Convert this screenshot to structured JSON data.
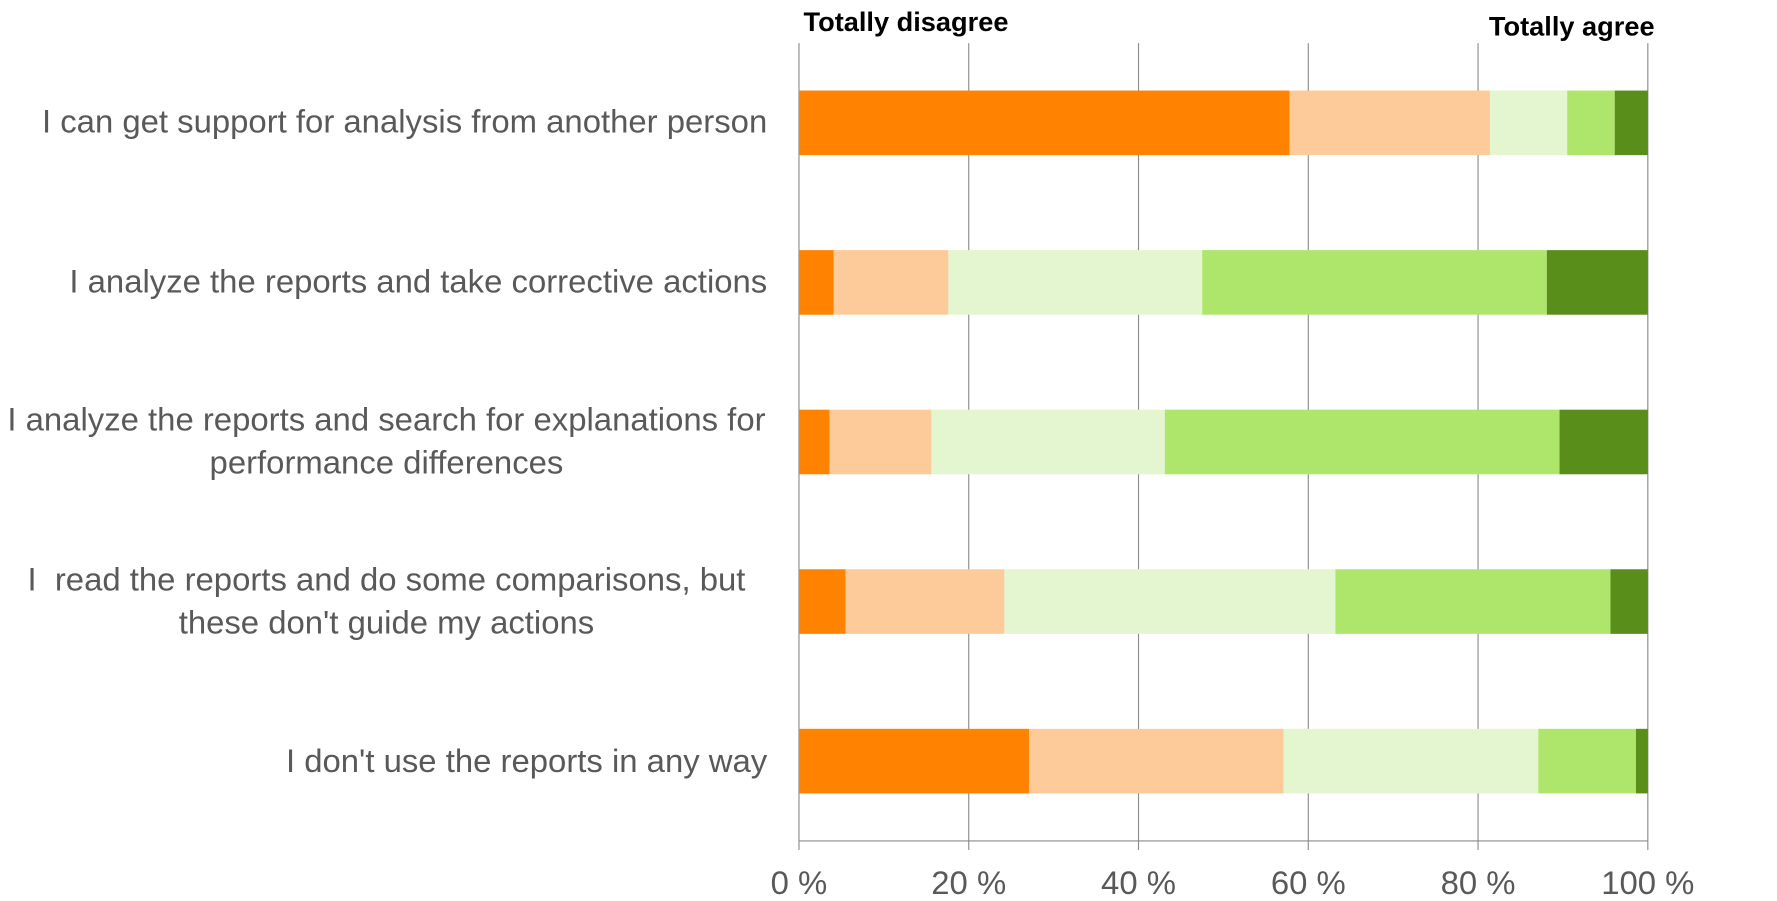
{
  "chart_data": {
    "type": "stacked-barh",
    "annotations": [
      "Totally disagree",
      "Totally agree"
    ],
    "categories": [
      "I can get support for analysis from another person",
      "I analyze the reports and take corrective actions",
      "I analyze the reports and search for explanations for performance differences",
      "I  read the reports and do some comparisons, but these don't guide my actions",
      "I don't use the reports in any way"
    ],
    "series": [
      {
        "color": "#ff8200",
        "values": [
          57.8,
          4.1,
          3.6,
          5.5,
          27.1
        ]
      },
      {
        "color": "#fdcb9a",
        "values": [
          23.6,
          13.5,
          12.0,
          18.7,
          30.0
        ]
      },
      {
        "color": "#e3f6cf",
        "values": [
          9.1,
          29.9,
          27.5,
          39.0,
          30.0
        ]
      },
      {
        "color": "#aee66c",
        "values": [
          5.6,
          40.6,
          46.5,
          32.4,
          11.5
        ]
      },
      {
        "color": "#5a8e1a",
        "values": [
          3.9,
          11.9,
          10.4,
          4.4,
          1.4
        ]
      }
    ],
    "xlim": [
      0,
      100
    ],
    "xticks": [
      {
        "value": 0,
        "label": "0 %"
      },
      {
        "value": 20,
        "label": "20 %"
      },
      {
        "value": 40,
        "label": "40 %"
      },
      {
        "value": 60,
        "label": "60 %"
      },
      {
        "value": 80,
        "label": "80 %"
      },
      {
        "value": 100,
        "label": "100 %"
      }
    ],
    "grid": true
  }
}
